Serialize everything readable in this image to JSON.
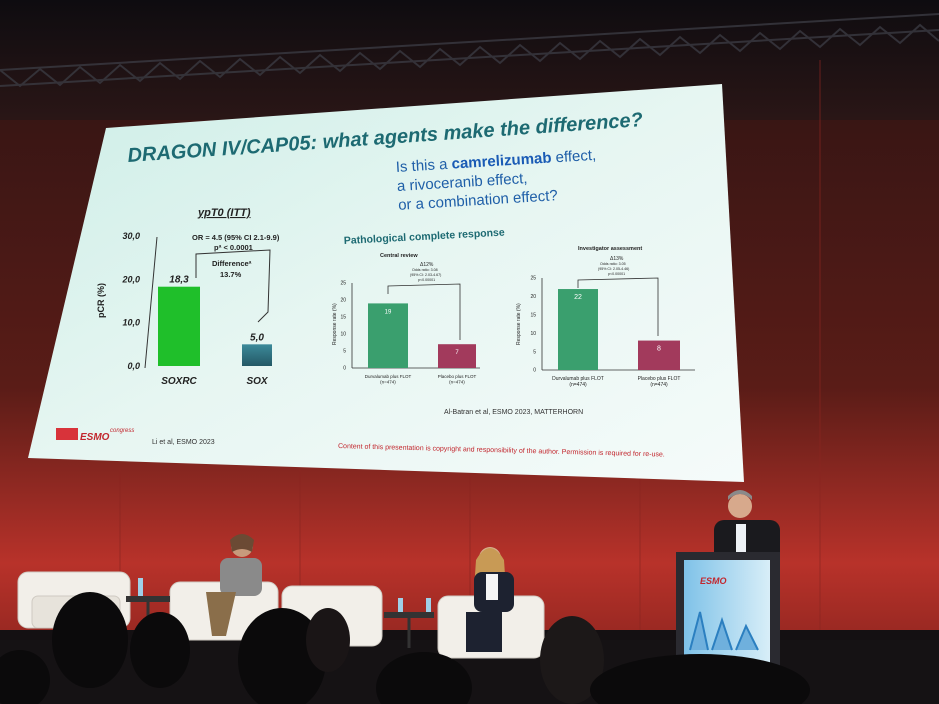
{
  "slide": {
    "title": "DRAGON IV/CAP05: what agents make the difference?",
    "question": {
      "l1_pre": "Is this a ",
      "l1_bold": "camrelizumab",
      "l1_post": " effect,",
      "l2": "a rivoceranib effect,",
      "l3": "or a combination effect?"
    },
    "footer_copyright": "Content of this presentation is copyright and responsibility of the author. Permission is required for re-use.",
    "logo_text": "ESMO",
    "logo_super": "congress"
  },
  "chart_data": [
    {
      "type": "bar",
      "title": "ypT0 (ITT)",
      "ylabel": "pCR (%)",
      "ylim": [
        0,
        30
      ],
      "yticks": [
        "0,0",
        "10,0",
        "20,0",
        "30,0"
      ],
      "categories": [
        "SOXRC",
        "SOX"
      ],
      "values": [
        18.3,
        5.0
      ],
      "value_labels": [
        "18,3",
        "5,0"
      ],
      "colors": [
        "#1fbf2a",
        "#2f6f7a"
      ],
      "annotations": [
        "OR = 4.5 (95% CI 2.1-9.9)",
        "pª < 0.0001",
        "Differenceª",
        "13.7%"
      ],
      "citation": "Li et al, ESMO 2023"
    },
    {
      "type": "bar",
      "title": "Pathological complete response",
      "subtitle": "Central review",
      "ylabel": "Response rate (%)",
      "ylim": [
        0,
        25
      ],
      "yticks": [
        "0",
        "5",
        "10",
        "15",
        "20",
        "25"
      ],
      "categories": [
        "Durvalumab plus FLOT (n=474)",
        "Placebo plus FLOT (n=474)"
      ],
      "values": [
        19,
        7
      ],
      "value_labels": [
        "19",
        "7"
      ],
      "colors": [
        "#3a9f6e",
        "#a23a5c"
      ],
      "annotations": [
        "Δ12%",
        "Odds ratio: 3.08",
        "(95% CI: 2.03-4.67)",
        "p<0.00001"
      ]
    },
    {
      "type": "bar",
      "title": "Investigator assessment",
      "ylabel": "Response rate (%)",
      "ylim": [
        0,
        25
      ],
      "yticks": [
        "0",
        "5",
        "10",
        "15",
        "20",
        "25"
      ],
      "categories": [
        "Durvalumab plus FLOT (n=474)",
        "Placebo plus FLOT (n=474)"
      ],
      "values": [
        22,
        8
      ],
      "value_labels": [
        "22",
        "8"
      ],
      "colors": [
        "#3a9f6e",
        "#a23a5c"
      ],
      "annotations": [
        "Δ13%",
        "Odds ratio: 3.05",
        "(95% CI: 2.05-4.46)",
        "p<0.00001"
      ],
      "citation": "Al-Batran et al, ESMO 2023, MATTERHORN"
    }
  ]
}
